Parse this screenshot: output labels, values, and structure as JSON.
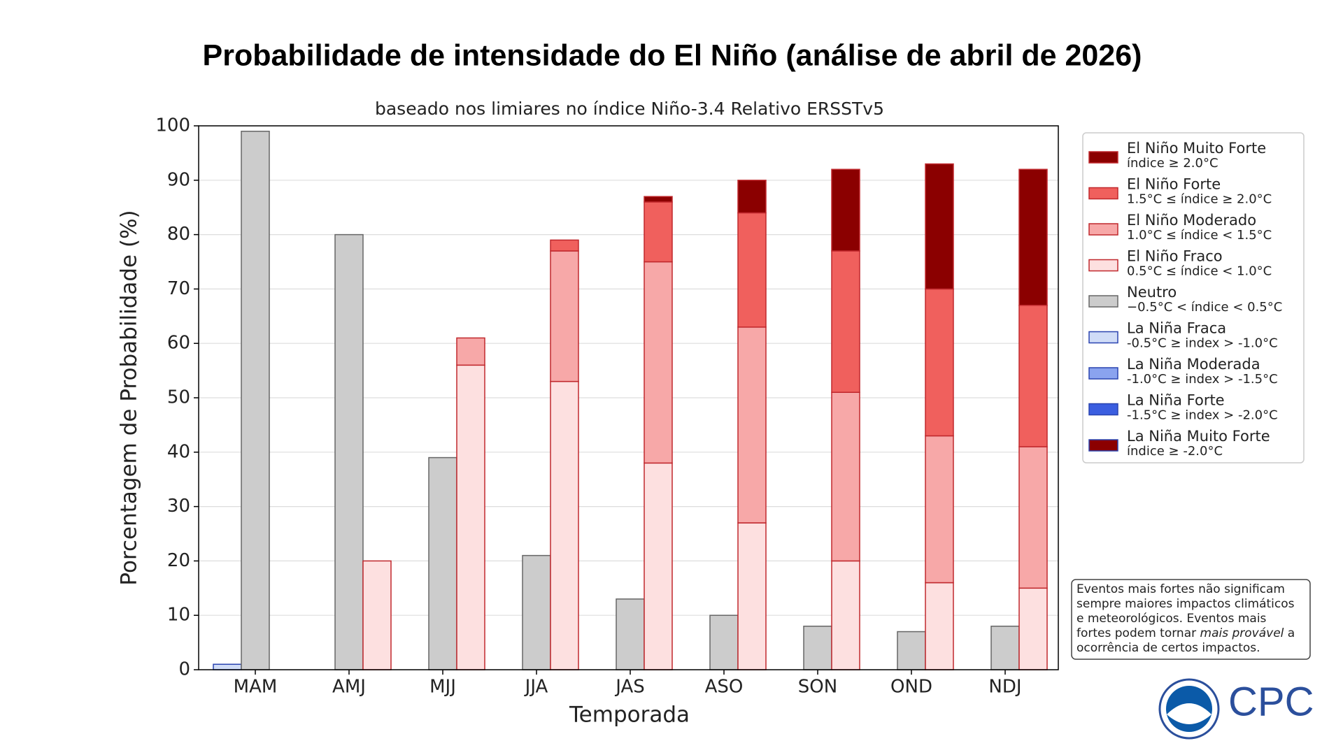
{
  "chart_data": {
    "type": "bar",
    "title": "Probabilidade de intensidade do El Niño (análise de abril de 2026)",
    "subtitle": "baseado nos limiares no índice Niño-3.4 Relativo ERSSTv5",
    "x_label": "Temporada",
    "y_label": "Porcentagem de Probabilidade (%)",
    "categories": [
      "MAM",
      "AMJ",
      "MJJ",
      "JJA",
      "JAS",
      "ASO",
      "SON",
      "OND",
      "NDJ"
    ],
    "ylim": [
      0,
      100
    ],
    "yticks": [
      0,
      10,
      20,
      30,
      40,
      50,
      60,
      70,
      80,
      90,
      100
    ],
    "grid": true,
    "legend": "right",
    "series": [
      {
        "name": "El Niño Muito Forte",
        "description": "índice ≥ 2.0°C",
        "color": "#8b0000",
        "values": [
          0,
          0,
          0,
          0,
          1,
          6,
          15,
          23,
          25
        ]
      },
      {
        "name": "El Niño Forte",
        "description": "1.5°C ≤ índice ≥ 2.0°C",
        "color": "#f0605d",
        "values": [
          0,
          0,
          0,
          2,
          11,
          21,
          26,
          27,
          26
        ]
      },
      {
        "name": "El Niño Moderado",
        "description": "1.0°C ≤ índice < 1.5°C",
        "color": "#f7a8a8",
        "values": [
          0,
          0,
          5,
          24,
          37,
          36,
          31,
          27,
          26
        ]
      },
      {
        "name": "El Niño Fraco",
        "description": "0.5°C ≤ índice < 1.0°C",
        "color": "#fde0e0",
        "values": [
          0,
          20,
          56,
          53,
          38,
          27,
          20,
          16,
          15
        ]
      },
      {
        "name": "Neutro",
        "description": "−0.5°C < índice < 0.5°C",
        "color": "#cccccc",
        "values": [
          99,
          80,
          39,
          21,
          13,
          10,
          8,
          7,
          8
        ]
      },
      {
        "name": "La Niña Fraca",
        "description": "-0.5°C ≥ index > -1.0°C",
        "color": "#d0dcf7",
        "values": [
          1,
          0,
          0,
          0,
          0,
          0,
          0,
          0,
          0
        ]
      },
      {
        "name": "La Niña Moderada",
        "description": "-1.0°C ≥ index > -1.5°C",
        "color": "#8aa3ef",
        "values": [
          0,
          0,
          0,
          0,
          0,
          0,
          0,
          0,
          0
        ]
      },
      {
        "name": "La Niña Forte",
        "description": "-1.5°C ≥ index > -2.0°C",
        "color": "#3b5ee0",
        "values": [
          0,
          0,
          0,
          0,
          0,
          0,
          0,
          0,
          0
        ]
      },
      {
        "name": "La Niña Muito Forte",
        "description": "índice ≥ -2.0°C",
        "color": "#8b0000",
        "values": [
          0,
          0,
          0,
          0,
          0,
          0,
          0,
          0,
          0
        ]
      }
    ],
    "note": {
      "lines": [
        [
          "Eventos mais fortes não significam"
        ],
        [
          "sempre maiores impactos climáticos"
        ],
        [
          "e meteorológicos. Eventos mais"
        ],
        [
          "fortes podem tornar ",
          "mais provável",
          " a"
        ],
        [
          "ocorrência de certos impactos."
        ]
      ]
    },
    "logo_text": "CPC"
  }
}
